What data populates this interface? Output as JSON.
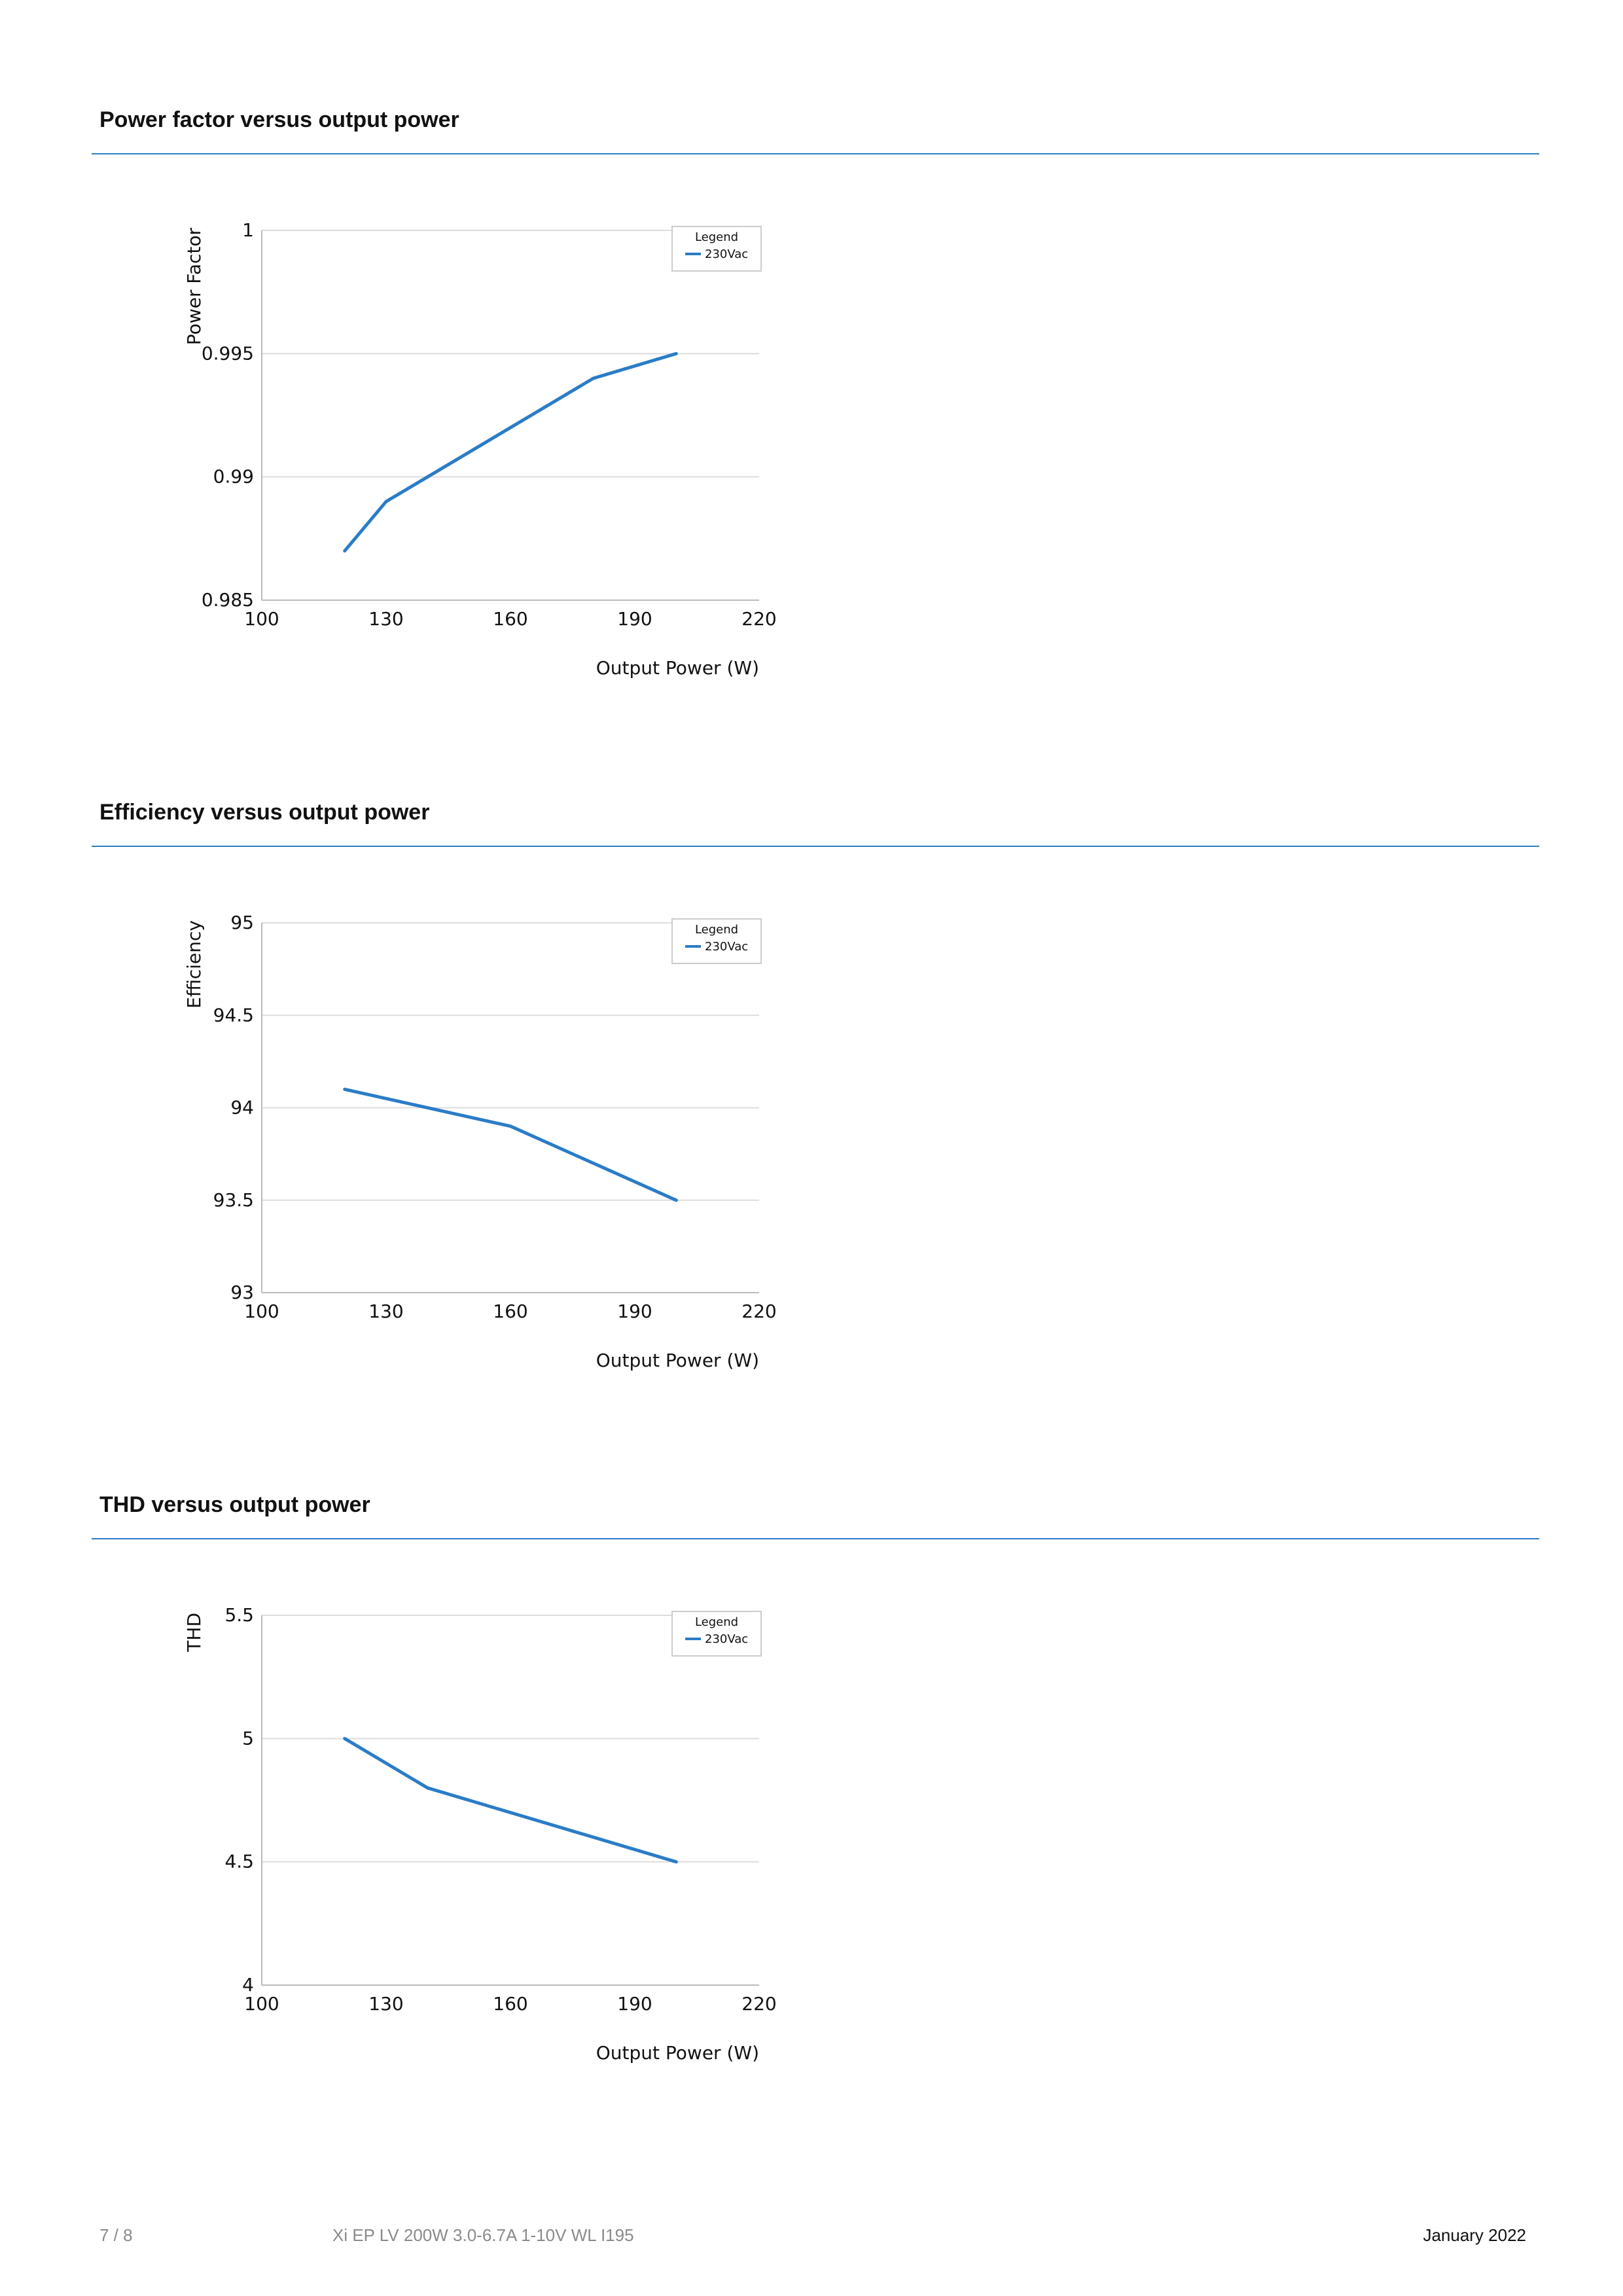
{
  "sections": [
    {
      "title": "Power factor versus output power",
      "chart_data": {
        "type": "line",
        "title": "",
        "xlabel": "Output Power (W)",
        "ylabel": "Power Factor",
        "xlim": [
          100,
          220
        ],
        "ylim": [
          0.985,
          1
        ],
        "x_ticks": [
          100,
          130,
          160,
          190,
          220
        ],
        "x_tick_labels": [
          "100",
          "130",
          "160",
          "190",
          "220"
        ],
        "y_ticks": [
          0.985,
          0.99,
          0.995,
          1
        ],
        "y_tick_labels": [
          "0.985",
          "0.99",
          "0.995",
          "1"
        ],
        "grid": true,
        "legend_title": "Legend",
        "legend_position": "top-right",
        "series": [
          {
            "name": "230Vac",
            "color": "#2a7cc7",
            "x": [
              120,
              130,
              160,
              180,
              200
            ],
            "y": [
              0.987,
              0.989,
              0.992,
              0.994,
              0.995
            ]
          }
        ]
      }
    },
    {
      "title": "Efficiency versus output power",
      "chart_data": {
        "type": "line",
        "title": "",
        "xlabel": "Output Power (W)",
        "ylabel": "Efficiency",
        "xlim": [
          100,
          220
        ],
        "ylim": [
          93,
          95
        ],
        "x_ticks": [
          100,
          130,
          160,
          190,
          220
        ],
        "x_tick_labels": [
          "100",
          "130",
          "160",
          "190",
          "220"
        ],
        "y_ticks": [
          93,
          93.5,
          94,
          94.5,
          95
        ],
        "y_tick_labels": [
          "93",
          "93.5",
          "94",
          "94.5",
          "95"
        ],
        "grid": true,
        "legend_title": "Legend",
        "legend_position": "top-right",
        "series": [
          {
            "name": "230Vac",
            "color": "#2a7cc7",
            "x": [
              120,
              160,
              200
            ],
            "y": [
              94.1,
              93.9,
              93.5
            ]
          }
        ]
      }
    },
    {
      "title": "THD versus output power",
      "chart_data": {
        "type": "line",
        "title": "",
        "xlabel": "Output Power (W)",
        "ylabel": "THD",
        "xlim": [
          100,
          220
        ],
        "ylim": [
          4,
          5.5
        ],
        "x_ticks": [
          100,
          130,
          160,
          190,
          220
        ],
        "x_tick_labels": [
          "100",
          "130",
          "160",
          "190",
          "220"
        ],
        "y_ticks": [
          4,
          4.5,
          5,
          5.5
        ],
        "y_tick_labels": [
          "4",
          "4.5",
          "5",
          "5.5"
        ],
        "grid": true,
        "legend_title": "Legend",
        "legend_position": "top-right",
        "series": [
          {
            "name": "230Vac",
            "color": "#2a7cc7",
            "x": [
              120,
              140,
              200
            ],
            "y": [
              5,
              4.8,
              4.5
            ]
          }
        ]
      }
    }
  ],
  "footer": {
    "page": "7 / 8",
    "product": "Xi EP LV 200W 3.0-6.7A 1-10V WL I195",
    "date": "January 2022"
  },
  "colors": {
    "accent": "#2a7cc7",
    "grid": "#dddddd",
    "muted_text": "#8a8a8a"
  }
}
